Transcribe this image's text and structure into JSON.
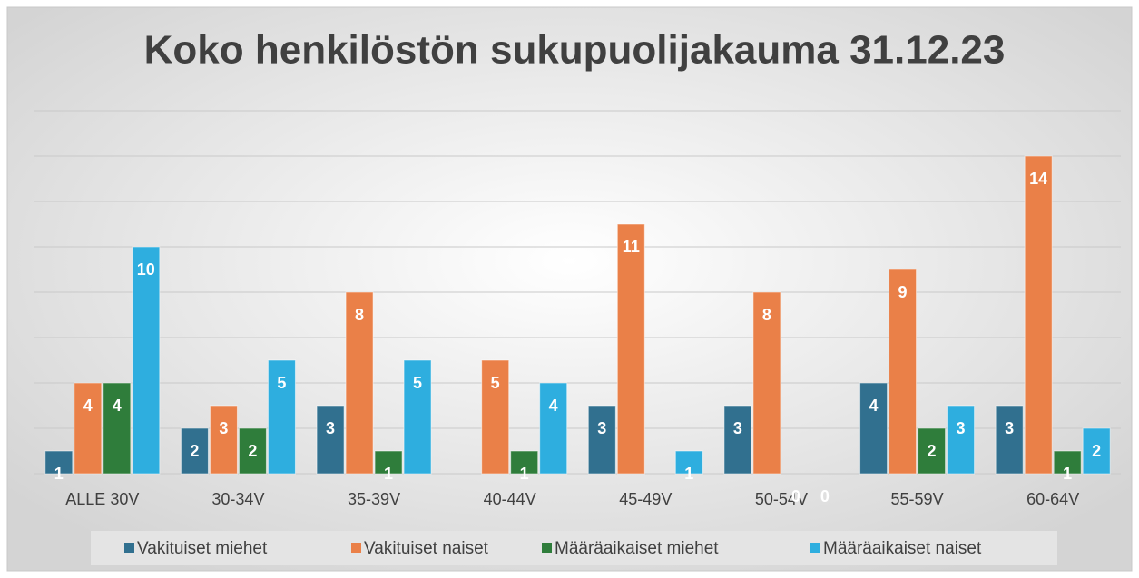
{
  "chart_data": {
    "type": "bar",
    "title": "Koko henkilöstön sukupuolijakauma 31.12.23",
    "categories": [
      "ALLE 30V",
      "30-34V",
      "35-39V",
      "40-44V",
      "45-49V",
      "50-54V",
      "55-59V",
      "60-64V"
    ],
    "series": [
      {
        "name": "Vakituiset miehet",
        "color": "#31708f",
        "values": [
          1,
          2,
          3,
          null,
          3,
          3,
          4,
          3
        ]
      },
      {
        "name": "Vakituiset naiset",
        "color": "#ea8048",
        "values": [
          4,
          3,
          8,
          5,
          11,
          8,
          9,
          14
        ]
      },
      {
        "name": "Määräaikaiset miehet",
        "color": "#2f7d3b",
        "values": [
          4,
          2,
          1,
          1,
          null,
          0,
          2,
          1
        ]
      },
      {
        "name": "Määräaikaiset naiset",
        "color": "#2eaedf",
        "values": [
          10,
          5,
          5,
          4,
          1,
          0,
          3,
          2
        ]
      }
    ],
    "ylim": [
      0,
      16
    ],
    "yticks": [
      0,
      2,
      4,
      6,
      8,
      10,
      12,
      14,
      16
    ],
    "grid": true,
    "legend": "bottom"
  }
}
